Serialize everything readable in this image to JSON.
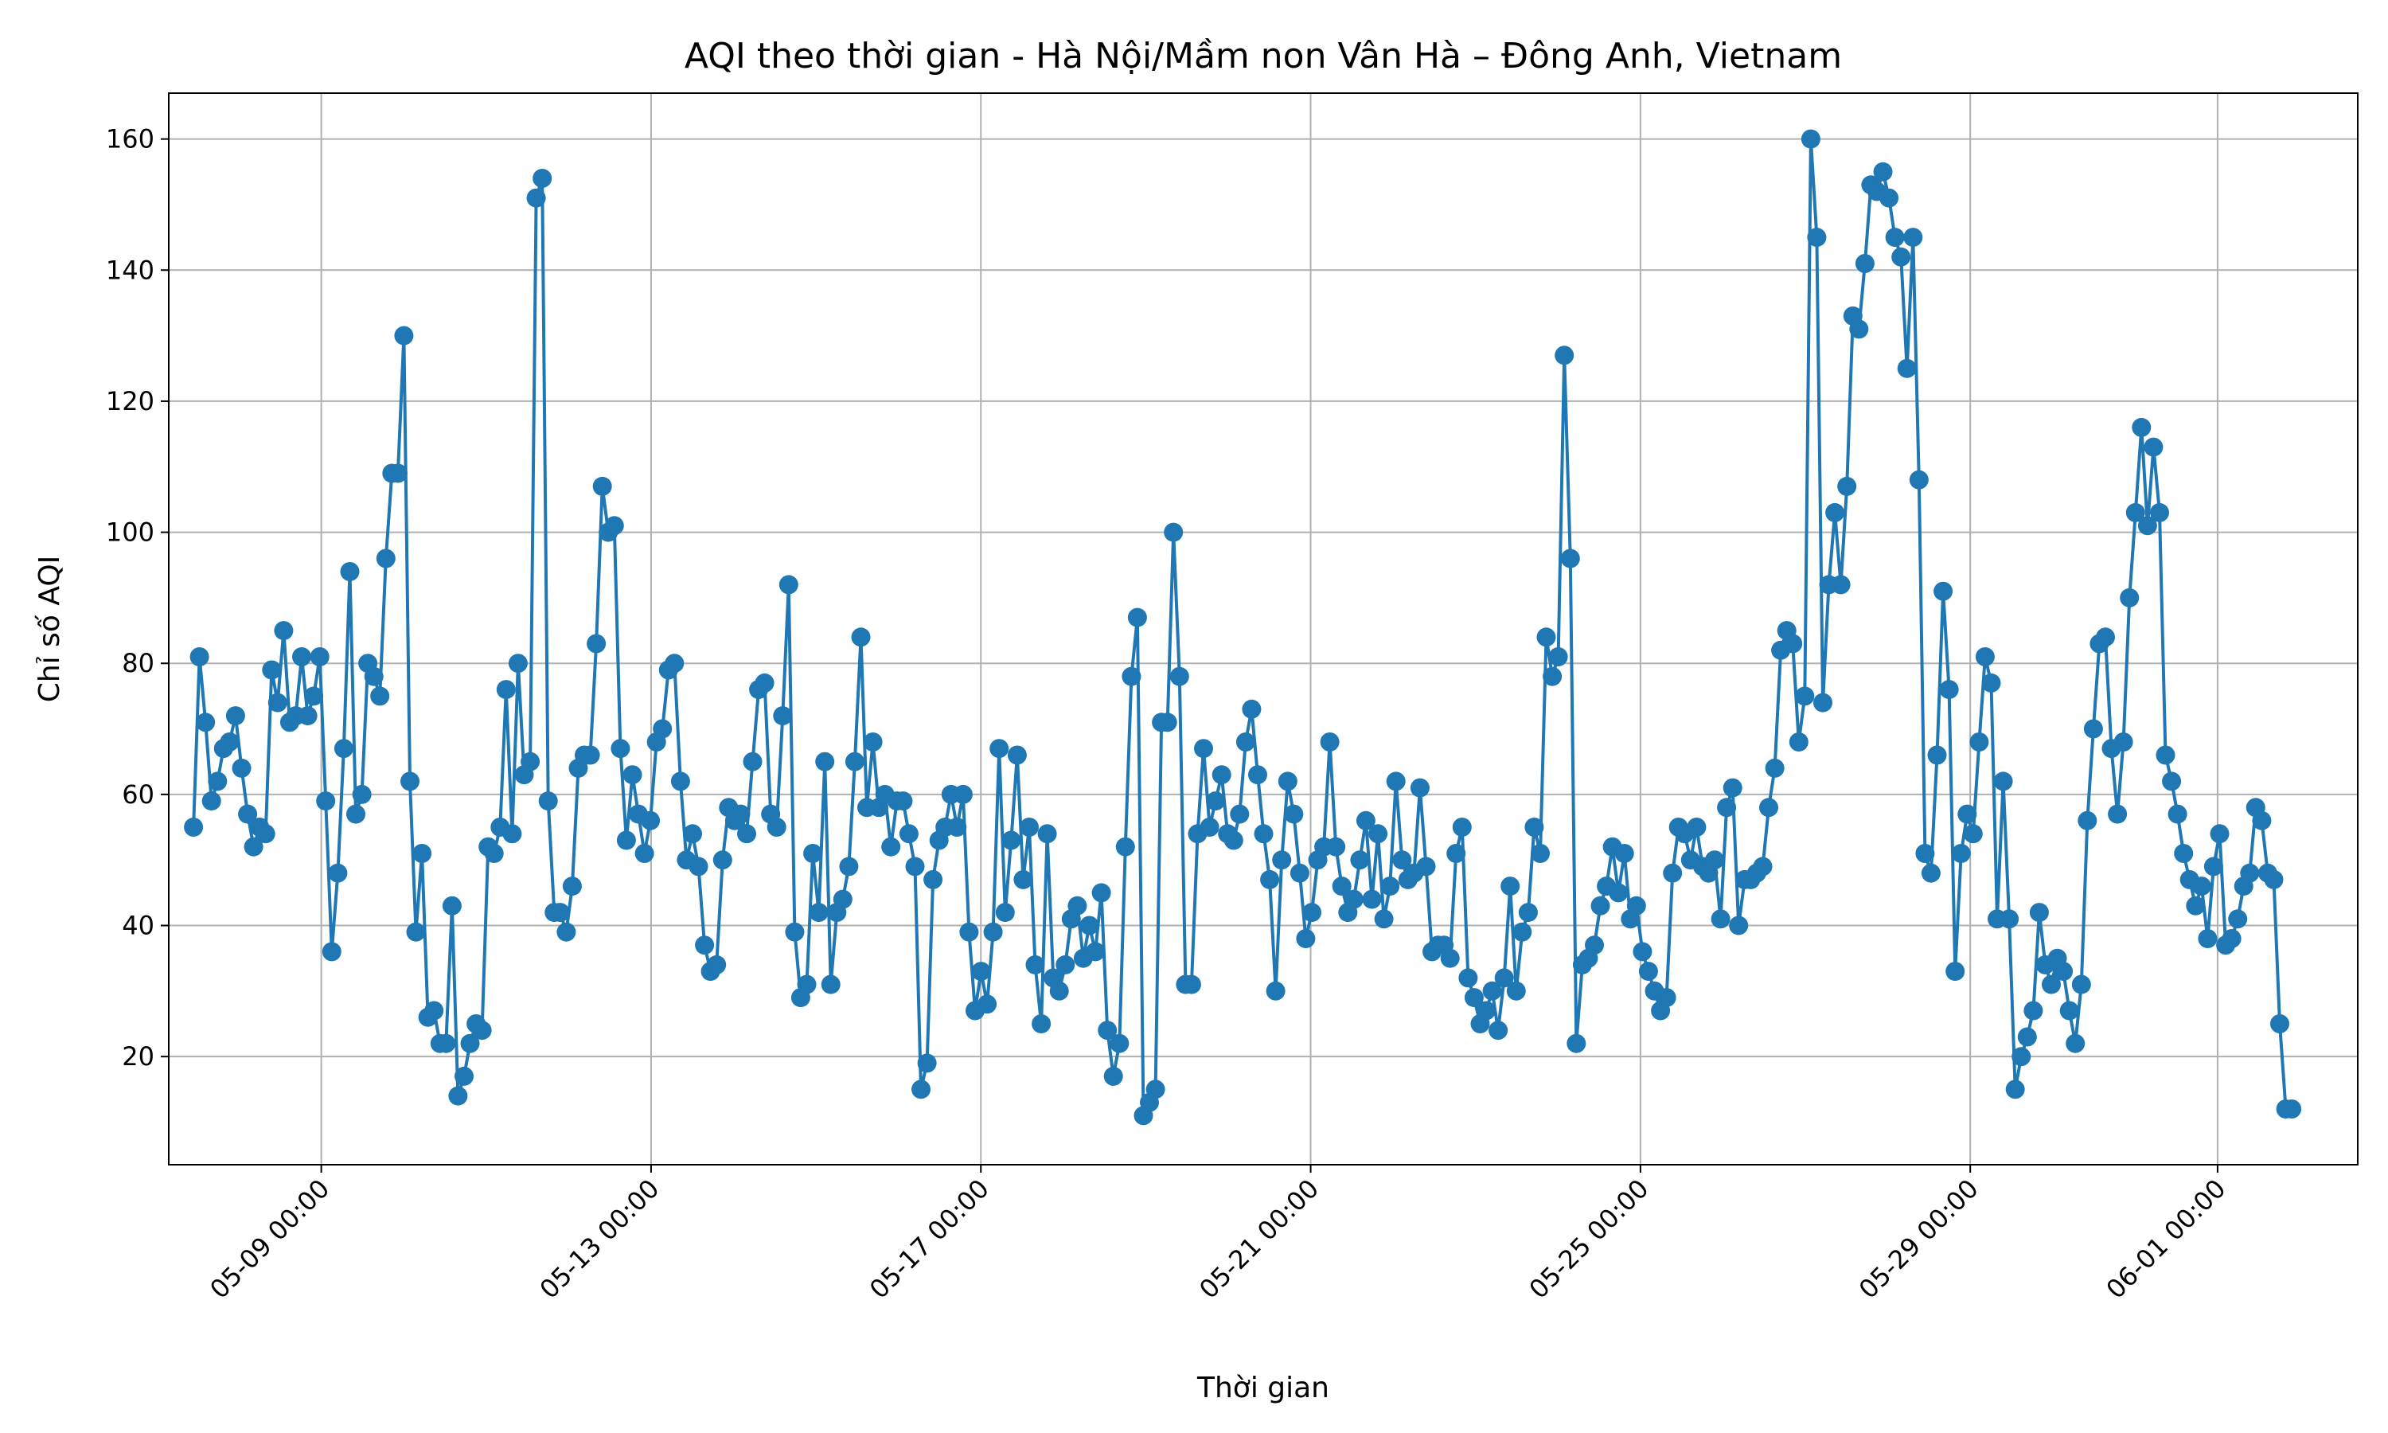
{
  "chart_data": {
    "type": "line",
    "title": "AQI theo thời gian - Hà Nội/Mầm non Vân Hà – Đông Anh, Vietnam",
    "xlabel": "Thời gian",
    "ylabel": "Chỉ số AQI",
    "x_tick_labels": [
      "05-09 00:00",
      "05-13 00:00",
      "05-17 00:00",
      "05-21 00:00",
      "05-25 00:00",
      "05-29 00:00",
      "06-01 00:00"
    ],
    "x_tick_days": [
      0,
      4,
      8,
      12,
      16,
      20,
      23
    ],
    "x_origin": "05-09 00:00",
    "xlim": [
      -1.85,
      24.7
    ],
    "y_ticks": [
      20,
      40,
      60,
      80,
      100,
      120,
      140,
      160
    ],
    "ylim": [
      3.5,
      167
    ],
    "grid": true,
    "marker": "circle",
    "color": "#1f77b4",
    "series": [
      {
        "values": [
          55,
          81,
          71,
          59,
          62,
          67,
          68,
          72,
          64,
          57,
          52,
          55,
          54,
          79,
          74,
          85,
          71,
          72,
          81,
          72,
          75,
          81,
          59,
          36,
          48,
          67,
          94,
          57,
          60,
          80,
          78,
          75,
          96,
          109,
          109,
          130,
          62,
          39,
          51,
          26,
          27,
          22,
          22,
          43,
          14,
          17,
          22,
          25,
          24,
          52,
          51,
          55,
          76,
          54,
          80,
          63,
          65,
          151,
          154,
          59,
          42,
          42,
          39,
          46,
          64,
          66,
          66,
          83,
          107,
          100,
          101,
          67,
          53,
          63,
          57,
          51,
          56,
          68,
          70,
          79,
          80,
          62,
          50,
          54,
          49,
          37,
          33,
          34,
          50,
          58,
          56,
          57,
          54,
          65,
          76,
          77,
          57,
          55,
          72,
          92,
          39,
          29,
          31,
          51,
          42,
          65,
          31,
          42,
          44,
          49,
          65,
          84,
          58,
          68,
          58,
          60,
          52,
          59,
          59,
          54,
          49,
          15,
          19,
          47,
          53,
          55,
          60,
          55,
          60,
          39,
          27,
          33,
          28,
          39,
          67,
          42,
          53,
          66,
          47,
          55,
          34,
          25,
          54,
          32,
          30,
          34,
          41,
          43,
          35,
          40,
          36,
          45,
          24,
          17,
          22,
          52,
          78,
          87,
          11,
          13,
          15,
          71,
          71,
          100,
          78,
          31,
          31,
          54,
          67,
          55,
          59,
          63,
          54,
          53,
          57,
          68,
          73,
          63,
          54,
          47,
          30,
          50,
          62,
          57,
          48,
          38,
          42,
          50,
          52,
          68,
          52,
          46,
          42,
          44,
          50,
          56,
          44,
          54,
          41,
          46,
          62,
          50,
          47,
          48,
          61,
          49,
          36,
          37,
          37,
          35,
          51,
          55,
          32,
          29,
          25,
          27,
          30,
          24,
          32,
          46,
          30,
          39,
          42,
          55,
          51,
          84,
          78,
          81,
          127,
          96,
          22,
          34,
          35,
          37,
          43,
          46,
          52,
          45,
          51,
          41,
          43,
          36,
          33,
          30,
          27,
          29,
          48,
          55,
          54,
          50,
          55,
          49,
          48,
          50,
          41,
          58,
          61,
          40,
          47,
          47,
          48,
          49,
          58,
          64,
          82,
          85,
          83,
          68,
          75,
          160,
          145,
          74,
          92,
          103,
          92,
          107,
          133,
          131,
          141,
          153,
          152,
          155,
          151,
          145,
          142,
          125,
          145,
          108,
          51,
          48,
          66,
          91,
          76,
          33,
          51,
          57,
          54,
          68,
          81,
          77,
          41,
          62,
          41,
          15,
          20,
          23,
          27,
          42,
          34,
          31,
          35,
          33,
          27,
          22,
          31,
          56,
          70,
          83,
          84,
          67,
          57,
          68,
          90,
          103,
          116,
          101,
          113,
          103,
          66,
          62,
          57,
          51,
          47,
          43,
          46,
          38,
          49,
          54,
          37,
          38,
          41,
          46,
          48,
          58,
          56,
          48,
          47,
          25,
          12,
          12
        ]
      }
    ]
  }
}
